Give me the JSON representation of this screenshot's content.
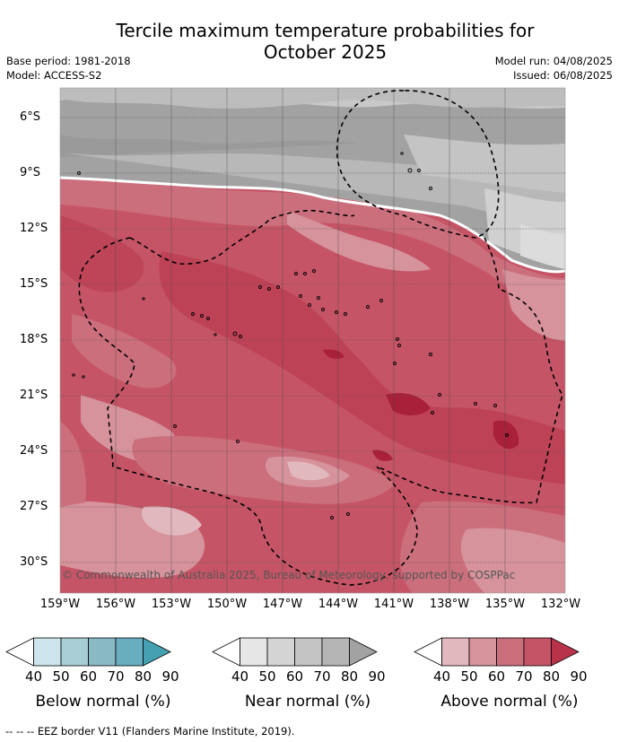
{
  "title_line1": "Tercile maximum temperature probabilities for",
  "title_line2": "October 2025",
  "base_period": "Base period: 1981-2018",
  "model": "Model: ACCESS-S2",
  "model_run": "Model run: 04/08/2025",
  "issued": "Issued: 06/08/2025",
  "latitude_labels": [
    "6°S",
    "9°S",
    "12°S",
    "15°S",
    "18°S",
    "21°S",
    "24°S",
    "27°S",
    "30°S"
  ],
  "longitude_labels": [
    "159°W",
    "156°W",
    "153°W",
    "150°W",
    "147°W",
    "144°W",
    "141°W",
    "138°W",
    "135°W",
    "132°W"
  ],
  "credit": "© Commonwealth of Australia 2025, Bureau of Meteorology, supported by COSPPac",
  "colorbars": [
    {
      "label": "Below normal (%)",
      "ticks": [
        "40",
        "50",
        "60",
        "70",
        "80",
        "90"
      ],
      "colors": [
        "#ffffff",
        "#cde5ea",
        "#a9cdd5",
        "#89b9c5",
        "#68aebe",
        "#44a1b2"
      ]
    },
    {
      "label": "Near normal (%)",
      "ticks": [
        "40",
        "50",
        "60",
        "70",
        "80",
        "90"
      ],
      "colors": [
        "#ffffff",
        "#e6e6e6",
        "#d4d4d4",
        "#c4c4c4",
        "#b5b5b5",
        "#a2a2a2"
      ]
    },
    {
      "label": "Above normal (%)",
      "ticks": [
        "40",
        "50",
        "60",
        "70",
        "80",
        "90"
      ],
      "colors": [
        "#ffffff",
        "#e2b8bf",
        "#d6939c",
        "#cc6f7d",
        "#c55566",
        "#b83349"
      ]
    }
  ],
  "footer": "--  --  -- EEZ border V11 (Flanders Marine Institute, 2019)."
}
